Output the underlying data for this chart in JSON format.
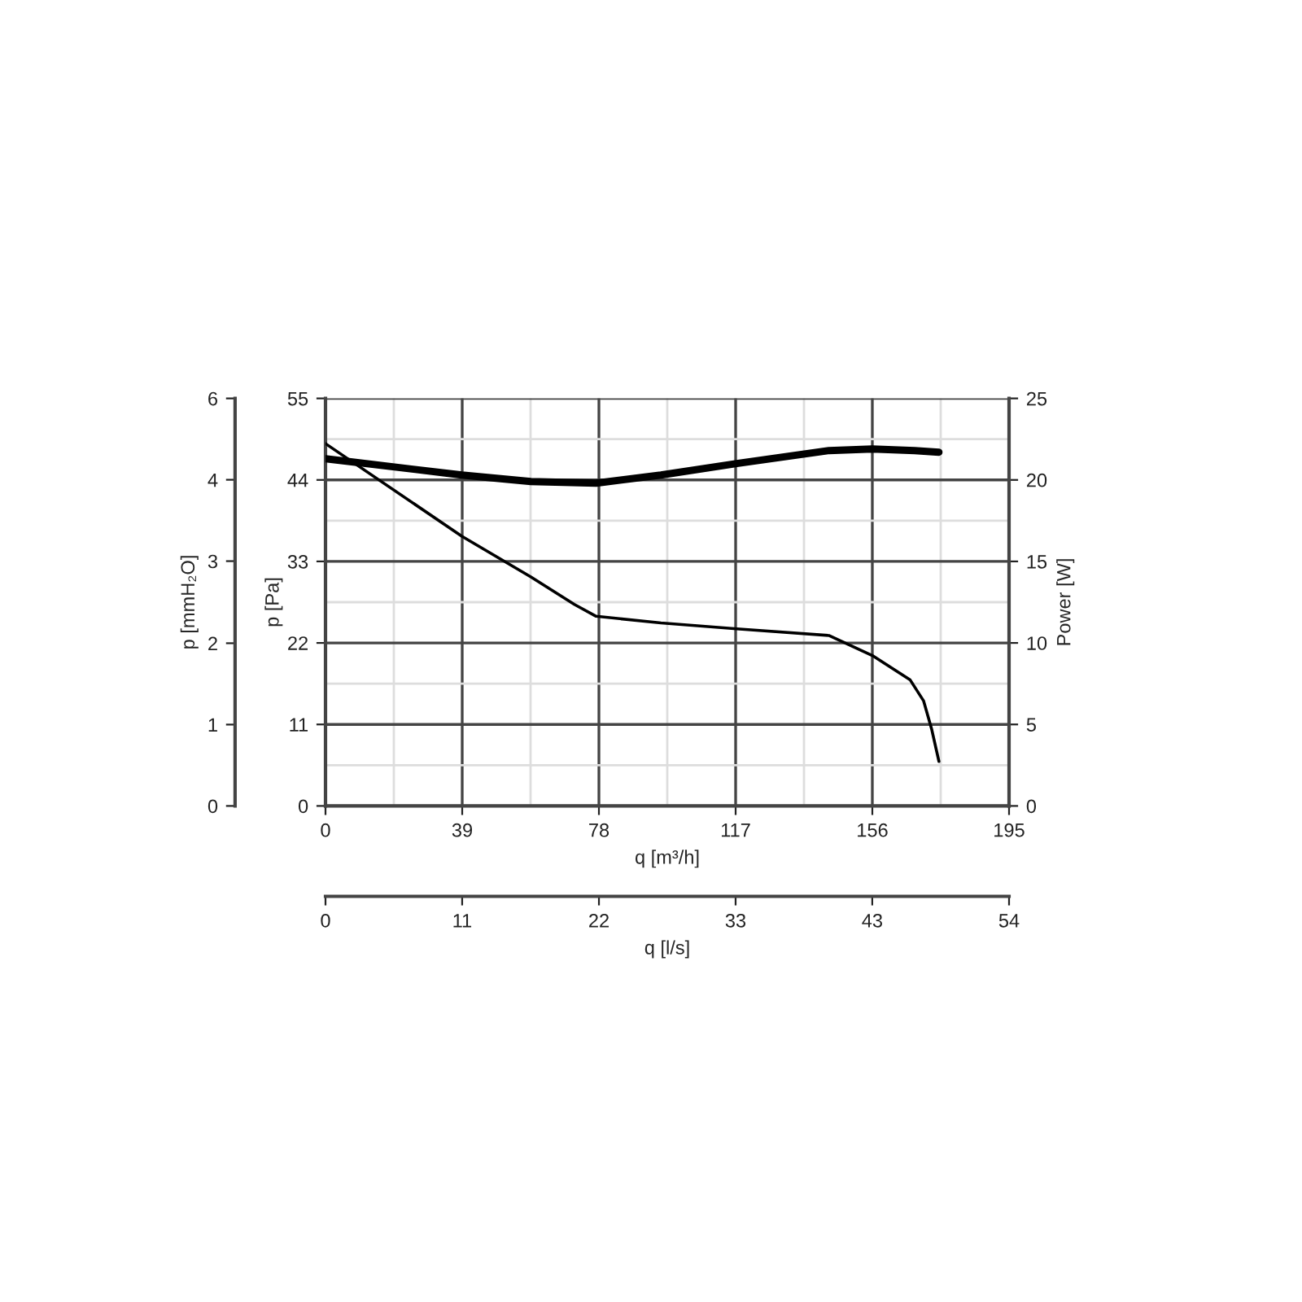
{
  "chart_data": {
    "type": "line",
    "xlabel": "q [m³/h]",
    "ylabel": "p [Pa]",
    "y2label": "Power [W]",
    "y3label": "p [mmH₂O]",
    "x2label": "q [l/s]",
    "xlim": [
      0,
      195
    ],
    "xticks": [
      0,
      39,
      78,
      117,
      156,
      195
    ],
    "ylim": [
      0,
      55
    ],
    "yticks": [
      0,
      11,
      22,
      33,
      44,
      55
    ],
    "y2lim": [
      0,
      25
    ],
    "y2ticks": [
      0,
      5,
      10,
      15,
      20,
      25
    ],
    "y3lim": [
      0,
      5.61
    ],
    "y3ticks": [
      0,
      {
        "value": 1.12,
        "label": "1"
      },
      {
        "value": 2.24,
        "label": "2"
      },
      {
        "value": 3.37,
        "label": "3"
      },
      {
        "value": 4.49,
        "label": "4"
      },
      {
        "value": 5.61,
        "label": "6"
      }
    ],
    "x2lim": [
      0,
      54.17
    ],
    "x2ticks": [
      0,
      {
        "value": 10.83,
        "label": "11"
      },
      {
        "value": 21.67,
        "label": "22"
      },
      {
        "value": 32.5,
        "label": "33"
      },
      {
        "value": 43.33,
        "label": "43"
      },
      {
        "value": 54.17,
        "label": "54"
      }
    ],
    "grid": true,
    "marker": "none",
    "line_style": "solid",
    "series": [
      {
        "color": "#000000",
        "axis": "y",
        "x": [
          0,
          38.9,
          58.6,
          71,
          77.2,
          95.7,
          117.3,
          143.6,
          156,
          166.8,
          170.6,
          172.9,
          175
        ],
        "values": [
          48.9,
          36.4,
          30.9,
          27.2,
          25.6,
          24.7,
          23.9,
          23.0,
          20.3,
          17.0,
          14.2,
          10.4,
          6.0
        ]
      },
      {
        "color": "#000000",
        "axis": "y2",
        "x": [
          0,
          38.9,
          58.6,
          77.2,
          95.7,
          117.3,
          143.6,
          156,
          168.1,
          175
        ],
        "values": [
          21.3,
          20.3,
          19.9,
          19.8,
          20.3,
          21.0,
          21.8,
          21.9,
          21.8,
          21.7
        ]
      }
    ]
  }
}
